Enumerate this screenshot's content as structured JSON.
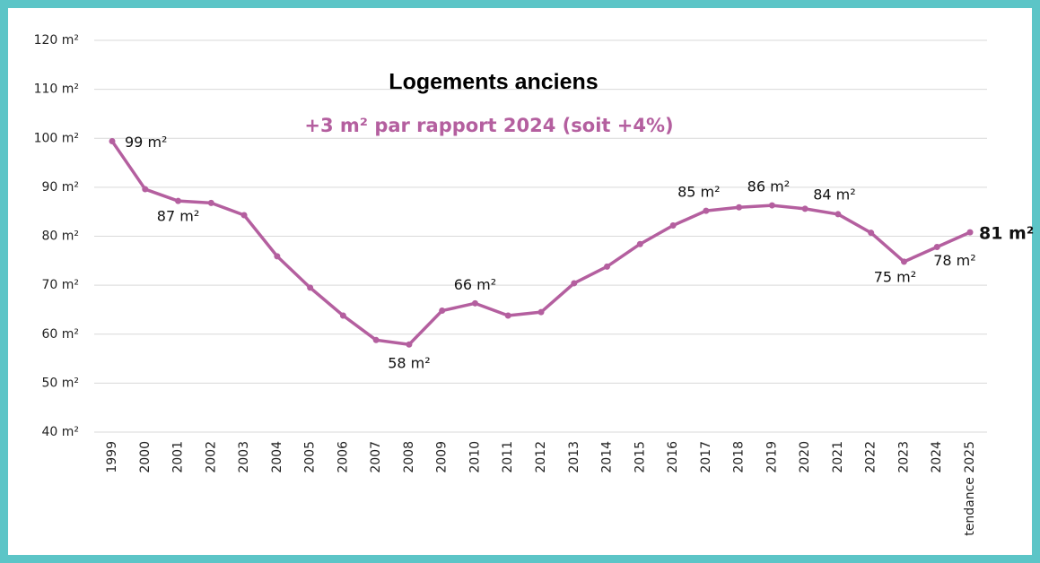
{
  "chart_data": {
    "type": "line",
    "title": "Logements anciens",
    "subtitle": "+3 m² par rapport 2024 (soit +4%)",
    "categories": [
      "1999",
      "2000",
      "2001",
      "2002",
      "2003",
      "2004",
      "2005",
      "2006",
      "2007",
      "2008",
      "2009",
      "2010",
      "2011",
      "2012",
      "2013",
      "2014",
      "2015",
      "2016",
      "2017",
      "2018",
      "2019",
      "2020",
      "2021",
      "2022",
      "2023",
      "2024",
      "tendance 2025"
    ],
    "series": [
      {
        "name": null,
        "color": "#b45f9f",
        "values": [
          99.4,
          89.6,
          87.2,
          86.8,
          84.3,
          75.9,
          69.5,
          63.8,
          58.8,
          57.9,
          64.8,
          66.3,
          63.8,
          64.5,
          70.4,
          73.8,
          78.4,
          82.2,
          85.2,
          85.9,
          86.3,
          85.6,
          84.5,
          80.7,
          74.8,
          77.8,
          80.8
        ],
        "value_labels": [
          "99 m²",
          null,
          "87 m²",
          null,
          null,
          null,
          null,
          null,
          null,
          "58 m²",
          null,
          "66 m²",
          null,
          null,
          null,
          null,
          null,
          null,
          "85 m²",
          null,
          "86 m²",
          null,
          "84 m²",
          null,
          "75 m²",
          "78 m²",
          "81 m²"
        ]
      }
    ],
    "ylim": [
      40,
      120
    ],
    "yticks": [
      {
        "value": 40,
        "label": "40 m²"
      },
      {
        "value": 50,
        "label": "50 m²"
      },
      {
        "value": 60,
        "label": "60 m²"
      },
      {
        "value": 70,
        "label": "70 m²"
      },
      {
        "value": 80,
        "label": "80 m²"
      },
      {
        "value": 90,
        "label": "90 m²"
      },
      {
        "value": 100,
        "label": "100 m²"
      },
      {
        "value": 110,
        "label": "110 m²"
      },
      {
        "value": 120,
        "label": "120 m²"
      }
    ],
    "grid": true
  }
}
